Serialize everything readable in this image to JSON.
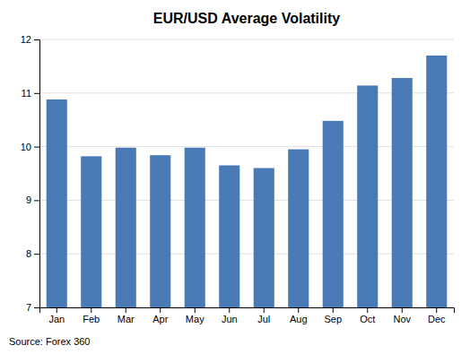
{
  "chart_data": {
    "type": "bar",
    "title": "EUR/USD Average Volatility",
    "categories": [
      "Jan",
      "Feb",
      "Mar",
      "Apr",
      "May",
      "Jun",
      "Jul",
      "Aug",
      "Sep",
      "Oct",
      "Nov",
      "Dec"
    ],
    "values": [
      10.88,
      9.82,
      9.98,
      9.84,
      9.98,
      9.65,
      9.6,
      9.95,
      10.48,
      11.14,
      11.28,
      11.7
    ],
    "color": "#4a7ab5",
    "ylim": [
      7,
      12
    ],
    "yticks": [
      7,
      8,
      9,
      10,
      11,
      12
    ],
    "grid": true,
    "source": "Source: Forex 360"
  }
}
